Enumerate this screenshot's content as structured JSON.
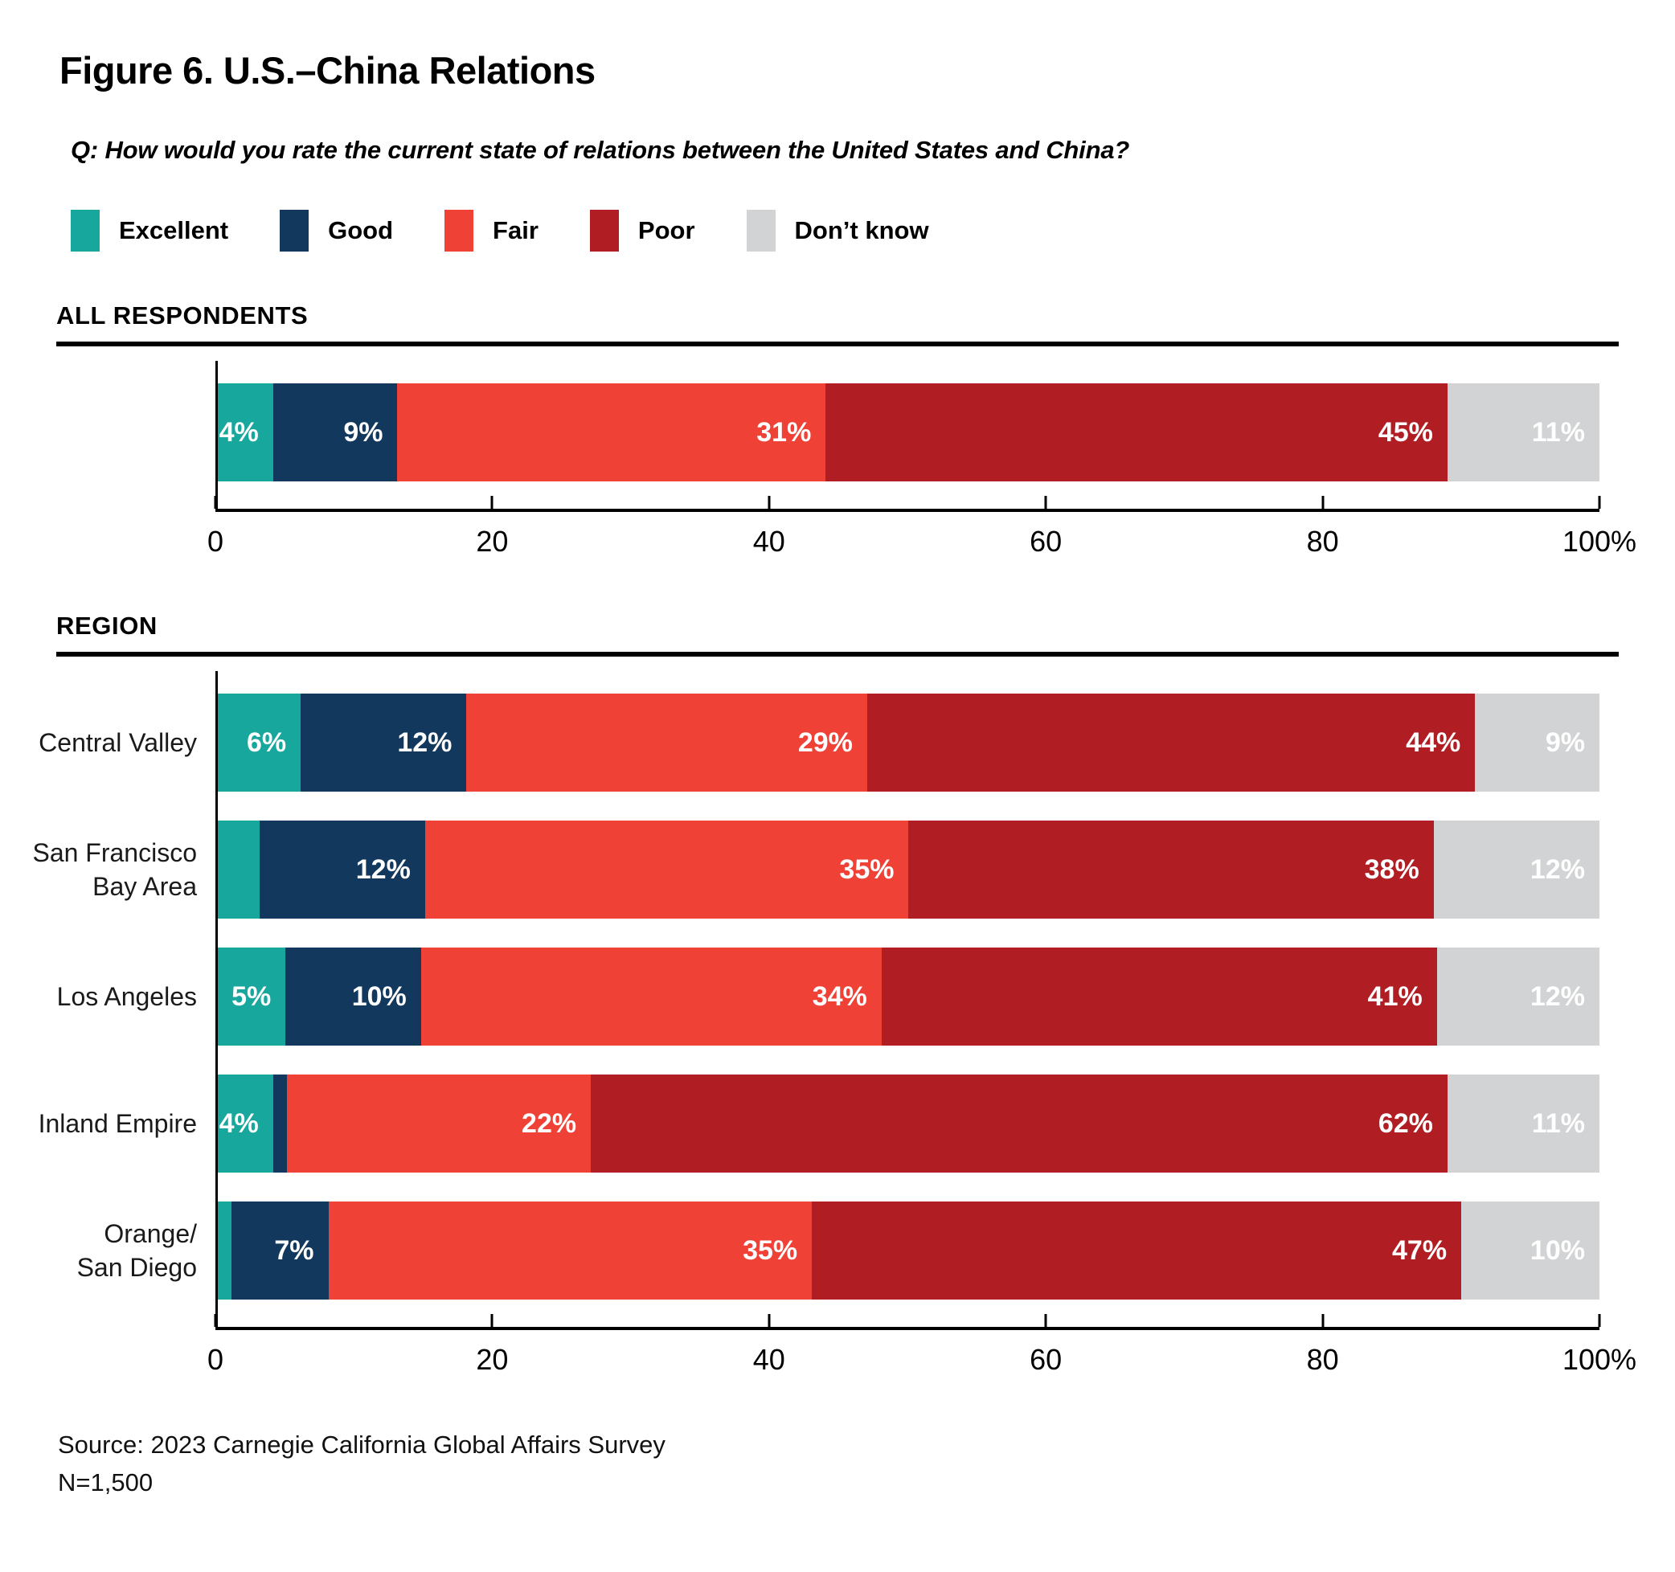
{
  "figure": {
    "title": "Figure 6. U.S.–China Relations",
    "question": "Q: How would you rate the current state of relations between the United States and China?",
    "source": "Source: 2023 Carnegie California Global Affairs Survey",
    "sample_size": "N=1,500"
  },
  "legend": [
    {
      "label": "Excellent",
      "color": "#18A79D"
    },
    {
      "label": "Good",
      "color": "#12395D"
    },
    {
      "label": "Fair",
      "color": "#EF4136"
    },
    {
      "label": "Poor",
      "color": "#B01E24"
    },
    {
      "label": "Don’t know",
      "color": "#D2D3D4"
    }
  ],
  "axis": {
    "tick_labels": [
      "0",
      "20",
      "40",
      "60",
      "80",
      "100%"
    ],
    "tick_values": [
      0,
      20,
      40,
      60,
      80,
      100
    ]
  },
  "chart_data": {
    "type": "bar",
    "orientation": "horizontal",
    "stacked": true,
    "xlim": [
      0,
      100
    ],
    "xticks": [
      0,
      20,
      40,
      60,
      80,
      100
    ],
    "grid": false,
    "legend_position": "top",
    "series_names": [
      "Excellent",
      "Good",
      "Fair",
      "Poor",
      "Don’t know"
    ],
    "sections": [
      {
        "header": "ALL RESPONDENTS",
        "rows": [
          {
            "label_lines": [],
            "segments": [
              {
                "series": "Excellent",
                "value": 4,
                "text": "4%"
              },
              {
                "series": "Good",
                "value": 9,
                "text": "9%"
              },
              {
                "series": "Fair",
                "value": 31,
                "text": "31%"
              },
              {
                "series": "Poor",
                "value": 45,
                "text": "45%"
              },
              {
                "series": "Don’t know",
                "value": 11,
                "text": "11%"
              }
            ]
          }
        ]
      },
      {
        "header": "REGION",
        "rows": [
          {
            "label_lines": [
              "Central Valley"
            ],
            "segments": [
              {
                "series": "Excellent",
                "value": 6,
                "text": "6%"
              },
              {
                "series": "Good",
                "value": 12,
                "text": "12%"
              },
              {
                "series": "Fair",
                "value": 29,
                "text": "29%"
              },
              {
                "series": "Poor",
                "value": 44,
                "text": "44%"
              },
              {
                "series": "Don’t know",
                "value": 9,
                "text": "9%"
              }
            ]
          },
          {
            "label_lines": [
              "San Francisco",
              "Bay Area"
            ],
            "segments": [
              {
                "series": "Excellent",
                "value": 3,
                "text": ""
              },
              {
                "series": "Good",
                "value": 12,
                "text": "12%"
              },
              {
                "series": "Fair",
                "value": 35,
                "text": "35%"
              },
              {
                "series": "Poor",
                "value": 38,
                "text": "38%"
              },
              {
                "series": "Don’t know",
                "value": 12,
                "text": "12%"
              }
            ]
          },
          {
            "label_lines": [
              "Los Angeles"
            ],
            "segments": [
              {
                "series": "Excellent",
                "value": 5,
                "text": "5%"
              },
              {
                "series": "Good",
                "value": 10,
                "text": "10%"
              },
              {
                "series": "Fair",
                "value": 34,
                "text": "34%"
              },
              {
                "series": "Poor",
                "value": 41,
                "text": "41%"
              },
              {
                "series": "Don’t know",
                "value": 12,
                "text": "12%"
              }
            ]
          },
          {
            "label_lines": [
              "Inland Empire"
            ],
            "segments": [
              {
                "series": "Excellent",
                "value": 4,
                "text": "4%"
              },
              {
                "series": "Good",
                "value": 1,
                "text": ""
              },
              {
                "series": "Fair",
                "value": 22,
                "text": "22%"
              },
              {
                "series": "Poor",
                "value": 62,
                "text": "62%"
              },
              {
                "series": "Don’t know",
                "value": 11,
                "text": "11%"
              }
            ]
          },
          {
            "label_lines": [
              "Orange/",
              "San Diego"
            ],
            "segments": [
              {
                "series": "Excellent",
                "value": 1,
                "text": ""
              },
              {
                "series": "Good",
                "value": 7,
                "text": "7%"
              },
              {
                "series": "Fair",
                "value": 35,
                "text": "35%"
              },
              {
                "series": "Poor",
                "value": 47,
                "text": "47%"
              },
              {
                "series": "Don’t know",
                "value": 10,
                "text": "10%"
              }
            ]
          }
        ]
      }
    ]
  }
}
